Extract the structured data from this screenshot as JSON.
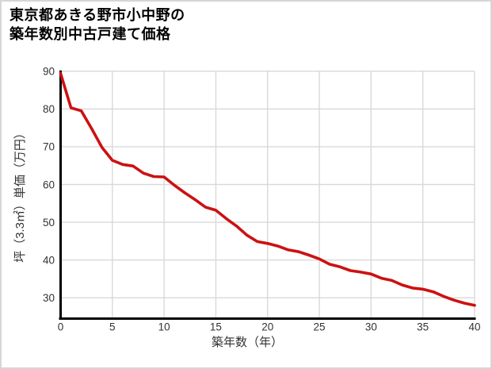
{
  "page": {
    "title_line1": "東京都あきる野市小中野の",
    "title_line2": "築年数別中古戸建て価格"
  },
  "chart_data": {
    "type": "line",
    "title": "東京都あきる野市小中野の築年数別中古戸建て価格",
    "xlabel": "築年数（年）",
    "ylabel": "坪（3.3㎡）単価（万円）",
    "x": [
      0,
      1,
      2,
      3,
      4,
      5,
      6,
      7,
      8,
      9,
      10,
      11,
      12,
      13,
      14,
      15,
      16,
      17,
      18,
      19,
      20,
      21,
      22,
      23,
      24,
      25,
      26,
      27,
      28,
      29,
      30,
      31,
      32,
      33,
      34,
      35,
      36,
      37,
      38,
      39,
      40
    ],
    "values": [
      89.4,
      80.3,
      79.5,
      74.8,
      69.8,
      66.4,
      65.3,
      64.9,
      63.0,
      62.1,
      62.0,
      59.8,
      57.8,
      56.0,
      54.0,
      53.2,
      51.0,
      49.0,
      46.6,
      44.9,
      44.4,
      43.7,
      42.7,
      42.2,
      41.3,
      40.3,
      38.9,
      38.2,
      37.2,
      36.8,
      36.3,
      35.2,
      34.6,
      33.4,
      32.6,
      32.3,
      31.6,
      30.4,
      29.4,
      28.6,
      28.0
    ],
    "xticks": [
      0,
      5,
      10,
      15,
      20,
      25,
      30,
      35,
      40
    ],
    "yticks": [
      30,
      40,
      50,
      60,
      70,
      80,
      90
    ],
    "xlim": [
      0,
      40
    ],
    "ylim": [
      24.5,
      90
    ],
    "grid": true,
    "legend": false,
    "colors": {
      "line": "#cc1111",
      "grid": "#d9d9d9",
      "axis": "#000000",
      "tick_text": "#333333"
    }
  }
}
